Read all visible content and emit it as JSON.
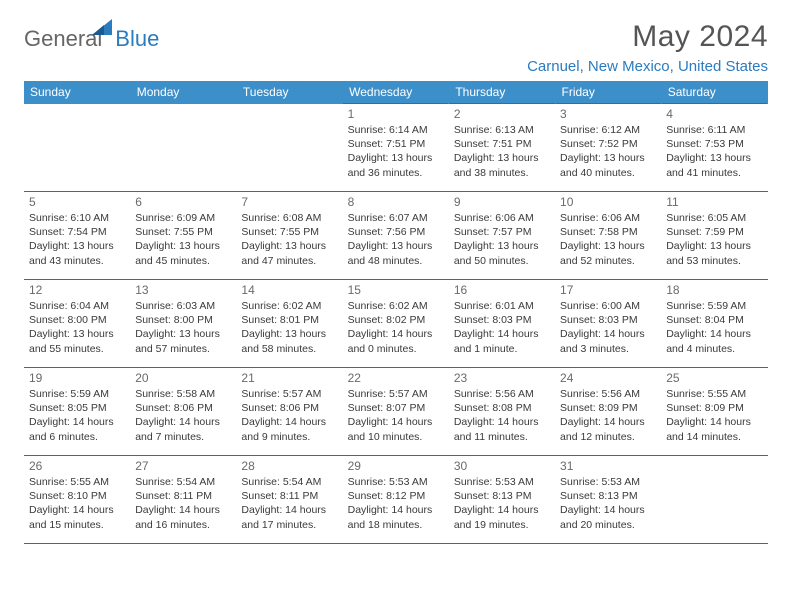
{
  "brand": {
    "part1": "General",
    "part2": "Blue"
  },
  "title": "May 2024",
  "location": "Carnuel, New Mexico, United States",
  "colors": {
    "header_bg": "#3d8fc9",
    "header_text": "#ffffff",
    "accent_blue": "#2b7bbf",
    "cell_border": "#2f6fa0",
    "body_text": "#3a3a3a",
    "title_text": "#555555",
    "logo_gray": "#666666"
  },
  "typography": {
    "title_fontsize": 30,
    "location_fontsize": 15,
    "header_fontsize": 12,
    "daynum_fontsize": 12,
    "cell_fontsize": 10.5
  },
  "day_headers": [
    "Sunday",
    "Monday",
    "Tuesday",
    "Wednesday",
    "Thursday",
    "Friday",
    "Saturday"
  ],
  "weeks": [
    [
      null,
      null,
      null,
      {
        "n": "1",
        "sr": "6:14 AM",
        "ss": "7:51 PM",
        "dl": "13 hours and 36 minutes."
      },
      {
        "n": "2",
        "sr": "6:13 AM",
        "ss": "7:51 PM",
        "dl": "13 hours and 38 minutes."
      },
      {
        "n": "3",
        "sr": "6:12 AM",
        "ss": "7:52 PM",
        "dl": "13 hours and 40 minutes."
      },
      {
        "n": "4",
        "sr": "6:11 AM",
        "ss": "7:53 PM",
        "dl": "13 hours and 41 minutes."
      }
    ],
    [
      {
        "n": "5",
        "sr": "6:10 AM",
        "ss": "7:54 PM",
        "dl": "13 hours and 43 minutes."
      },
      {
        "n": "6",
        "sr": "6:09 AM",
        "ss": "7:55 PM",
        "dl": "13 hours and 45 minutes."
      },
      {
        "n": "7",
        "sr": "6:08 AM",
        "ss": "7:55 PM",
        "dl": "13 hours and 47 minutes."
      },
      {
        "n": "8",
        "sr": "6:07 AM",
        "ss": "7:56 PM",
        "dl": "13 hours and 48 minutes."
      },
      {
        "n": "9",
        "sr": "6:06 AM",
        "ss": "7:57 PM",
        "dl": "13 hours and 50 minutes."
      },
      {
        "n": "10",
        "sr": "6:06 AM",
        "ss": "7:58 PM",
        "dl": "13 hours and 52 minutes."
      },
      {
        "n": "11",
        "sr": "6:05 AM",
        "ss": "7:59 PM",
        "dl": "13 hours and 53 minutes."
      }
    ],
    [
      {
        "n": "12",
        "sr": "6:04 AM",
        "ss": "8:00 PM",
        "dl": "13 hours and 55 minutes."
      },
      {
        "n": "13",
        "sr": "6:03 AM",
        "ss": "8:00 PM",
        "dl": "13 hours and 57 minutes."
      },
      {
        "n": "14",
        "sr": "6:02 AM",
        "ss": "8:01 PM",
        "dl": "13 hours and 58 minutes."
      },
      {
        "n": "15",
        "sr": "6:02 AM",
        "ss": "8:02 PM",
        "dl": "14 hours and 0 minutes."
      },
      {
        "n": "16",
        "sr": "6:01 AM",
        "ss": "8:03 PM",
        "dl": "14 hours and 1 minute."
      },
      {
        "n": "17",
        "sr": "6:00 AM",
        "ss": "8:03 PM",
        "dl": "14 hours and 3 minutes."
      },
      {
        "n": "18",
        "sr": "5:59 AM",
        "ss": "8:04 PM",
        "dl": "14 hours and 4 minutes."
      }
    ],
    [
      {
        "n": "19",
        "sr": "5:59 AM",
        "ss": "8:05 PM",
        "dl": "14 hours and 6 minutes."
      },
      {
        "n": "20",
        "sr": "5:58 AM",
        "ss": "8:06 PM",
        "dl": "14 hours and 7 minutes."
      },
      {
        "n": "21",
        "sr": "5:57 AM",
        "ss": "8:06 PM",
        "dl": "14 hours and 9 minutes."
      },
      {
        "n": "22",
        "sr": "5:57 AM",
        "ss": "8:07 PM",
        "dl": "14 hours and 10 minutes."
      },
      {
        "n": "23",
        "sr": "5:56 AM",
        "ss": "8:08 PM",
        "dl": "14 hours and 11 minutes."
      },
      {
        "n": "24",
        "sr": "5:56 AM",
        "ss": "8:09 PM",
        "dl": "14 hours and 12 minutes."
      },
      {
        "n": "25",
        "sr": "5:55 AM",
        "ss": "8:09 PM",
        "dl": "14 hours and 14 minutes."
      }
    ],
    [
      {
        "n": "26",
        "sr": "5:55 AM",
        "ss": "8:10 PM",
        "dl": "14 hours and 15 minutes."
      },
      {
        "n": "27",
        "sr": "5:54 AM",
        "ss": "8:11 PM",
        "dl": "14 hours and 16 minutes."
      },
      {
        "n": "28",
        "sr": "5:54 AM",
        "ss": "8:11 PM",
        "dl": "14 hours and 17 minutes."
      },
      {
        "n": "29",
        "sr": "5:53 AM",
        "ss": "8:12 PM",
        "dl": "14 hours and 18 minutes."
      },
      {
        "n": "30",
        "sr": "5:53 AM",
        "ss": "8:13 PM",
        "dl": "14 hours and 19 minutes."
      },
      {
        "n": "31",
        "sr": "5:53 AM",
        "ss": "8:13 PM",
        "dl": "14 hours and 20 minutes."
      },
      null
    ]
  ],
  "labels": {
    "sunrise": "Sunrise:",
    "sunset": "Sunset:",
    "daylight": "Daylight:"
  }
}
